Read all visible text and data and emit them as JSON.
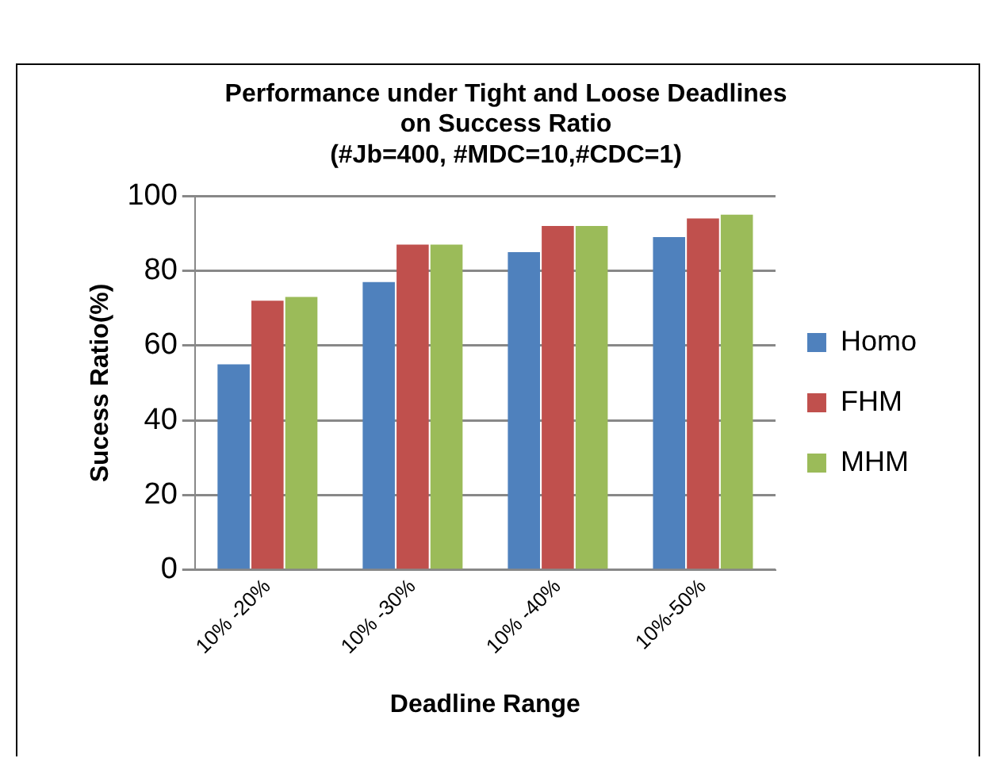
{
  "chart_data": {
    "type": "bar",
    "title": [
      "Performance under Tight and Loose Deadlines",
      "on Success Ratio",
      "(#Jb=400, #MDC=10,#CDC=1)"
    ],
    "xlabel": "Deadline Range",
    "ylabel": "Sucess Ratio(%)",
    "categories": [
      "10% -20%",
      "10% -30%",
      "10% -40%",
      "10%-50%"
    ],
    "series": [
      {
        "name": "Homo",
        "color": "#4f81bd",
        "values": [
          55,
          77,
          85,
          89
        ]
      },
      {
        "name": "FHM",
        "color": "#c0504d",
        "values": [
          72,
          87,
          92,
          94
        ]
      },
      {
        "name": "MHM",
        "color": "#9bbb59",
        "values": [
          73,
          87,
          92,
          95
        ]
      }
    ],
    "ylim": [
      0,
      100
    ],
    "yticks": [
      0,
      20,
      40,
      60,
      80,
      100
    ],
    "grid": "y",
    "legend": "right"
  }
}
